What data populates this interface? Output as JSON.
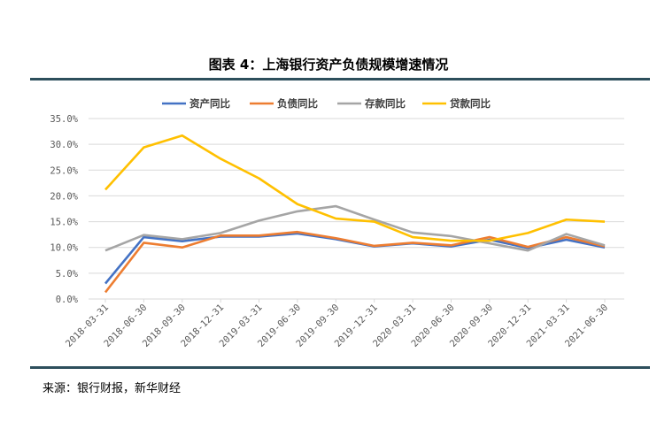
{
  "title": "图表 4：上海银行资产负债规模增速情况",
  "source": "来源：银行财报，新华财经",
  "chart_data": {
    "type": "line",
    "title": "图表 4：上海银行资产负债规模增速情况",
    "xlabel": "",
    "ylabel": "",
    "ylim": [
      0,
      35
    ],
    "yticks": [
      "0.0%",
      "5.0%",
      "10.0%",
      "15.0%",
      "20.0%",
      "25.0%",
      "30.0%",
      "35.0%"
    ],
    "grid": true,
    "legend_position": "top",
    "categories": [
      "2018-03-31",
      "2018-06-30",
      "2018-09-30",
      "2018-12-31",
      "2019-03-31",
      "2019-06-30",
      "2019-09-30",
      "2019-12-31",
      "2020-03-31",
      "2020-06-30",
      "2020-09-30",
      "2020-12-31",
      "2021-03-31",
      "2021-06-30"
    ],
    "series": [
      {
        "name": "资产同比",
        "color": "#4472c4",
        "values": [
          3.0,
          12.0,
          11.2,
          12.1,
          12.1,
          12.7,
          11.6,
          10.2,
          10.8,
          10.2,
          11.5,
          9.9,
          11.5,
          10.0
        ]
      },
      {
        "name": "负债同比",
        "color": "#ed7d31",
        "values": [
          1.3,
          10.9,
          10.0,
          12.3,
          12.3,
          13.0,
          11.8,
          10.3,
          10.9,
          10.4,
          12.0,
          10.1,
          12.0,
          10.2
        ]
      },
      {
        "name": "存款同比",
        "color": "#a5a5a5",
        "values": [
          9.4,
          12.4,
          11.6,
          12.8,
          15.2,
          17.0,
          18.0,
          15.4,
          12.9,
          12.2,
          10.8,
          9.4,
          12.6,
          10.4
        ]
      },
      {
        "name": "贷款同比",
        "color": "#ffc000",
        "values": [
          21.2,
          29.4,
          31.7,
          27.2,
          23.4,
          18.4,
          15.6,
          15.0,
          12.0,
          11.3,
          11.3,
          12.8,
          15.4,
          15.0
        ]
      }
    ]
  }
}
